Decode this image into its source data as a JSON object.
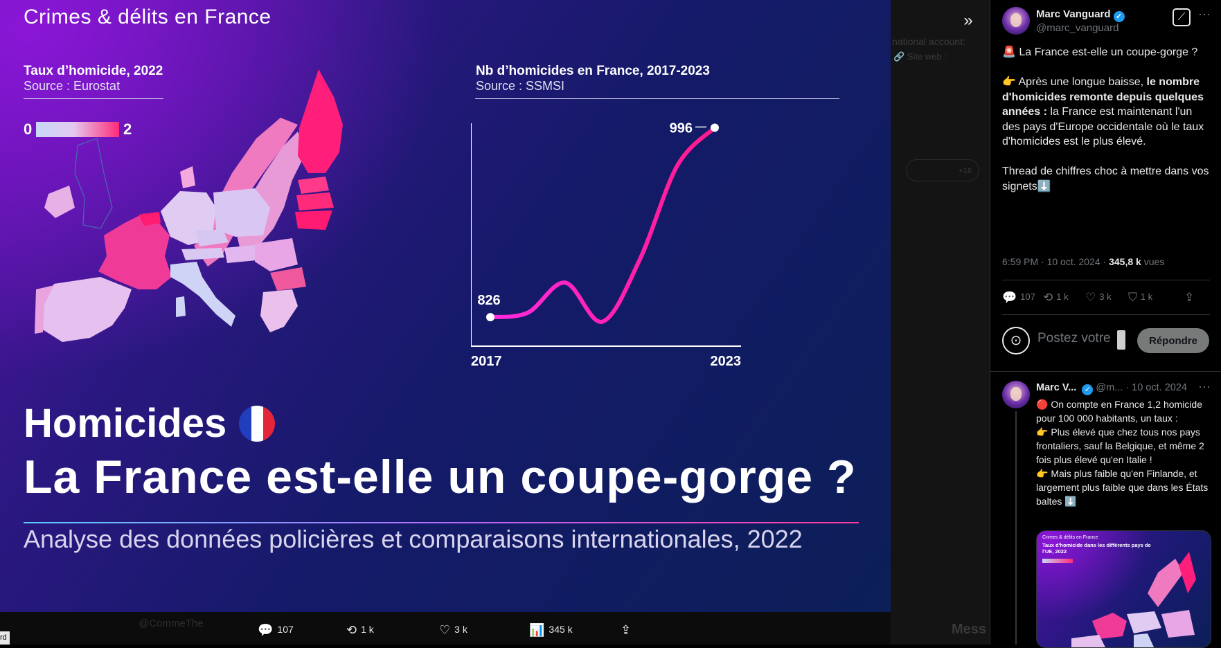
{
  "viewer": {
    "background_hint": {
      "line1": "national account:",
      "line2": "🔗 Site web :",
      "avatars_more": "+16"
    },
    "slide": {
      "section": "Crimes & délits en France",
      "map": {
        "title": "Taux d’homicide, 2022",
        "source": "Source : Eurostat",
        "legend_min": "0",
        "legend_max": "2"
      },
      "chart": {
        "title": "Nb d’homicides en France, 2017-2023",
        "source": "Source : SSMSI"
      },
      "heading": "Homicides",
      "title": "La France est-elle un coupe-gorge ?",
      "subtitle": "Analyse des données policières et comparaisons internationales, 2022"
    },
    "actions": {
      "replies": "107",
      "reposts": "1 k",
      "likes": "3 k",
      "views": "345 k"
    },
    "hint_reply": "@CommeThe",
    "hint_messages": "Mess"
  },
  "chart_data": {
    "type": "line",
    "title": "Nb d’homicides en France, 2017-2023",
    "x": [
      2017,
      2018,
      2019,
      2020,
      2021,
      2022,
      2023
    ],
    "xtick_labels": [
      "2017",
      "2023"
    ],
    "yticks": [
      "800",
      "900",
      "1000"
    ],
    "ylim": [
      800,
      1000
    ],
    "series": [
      {
        "values": [
          826,
          830,
          857,
          822,
          878,
          962,
          996
        ],
        "color": "#ff1a8c"
      }
    ],
    "endpoint_labels": {
      "start": "826",
      "end": "996"
    }
  },
  "tweet": {
    "author_name": "Marc Vanguard",
    "author_handle": "@marc_vanguard",
    "line1": "🚨 La France est-elle un coupe-gorge ?",
    "p2_a": "👉 Après une longue baisse, ",
    "p2_bold": "le nombre d'homicides remonte depuis quelques années :",
    "p2_b": " la France est maintenant l'un des pays d'Europe occidentale où le taux d'homicides est le plus élevé.",
    "p3": "Thread de chiffres choc à mettre dans vos signets⬇️",
    "time": "6:59 PM · 10 oct. 2024 · ",
    "views_count": "345,8 k",
    "views_label": " vues",
    "stats": {
      "replies": "107",
      "reposts": "1 k",
      "likes": "3 k",
      "bookmarks": "1 k"
    },
    "reply_placeholder": "Postez votre",
    "reply_button": "Répondre"
  },
  "thread": {
    "name": "Marc V...",
    "handle": "@m...",
    "date": "· 10 oct. 2024",
    "lines": [
      "🔴 On compte en France 1,2 homicide pour 100 000 habitants, un taux :",
      "👉 Plus élevé que chez tous nos pays frontaliers, sauf la Belgique, et même 2 fois plus élevé qu'en Italie !",
      "👉 Mais plus faible qu'en Finlande, et largement plus faible que dans les États baltes ⬇️"
    ],
    "media": {
      "section": "Crimes & délits en France",
      "title": "Taux d'homicide dans les différents pays de l'UE, 2022"
    }
  },
  "colors": {
    "accent_pink": "#ff1a8c",
    "verified": "#1d9bf0",
    "muted": "#71767b"
  }
}
